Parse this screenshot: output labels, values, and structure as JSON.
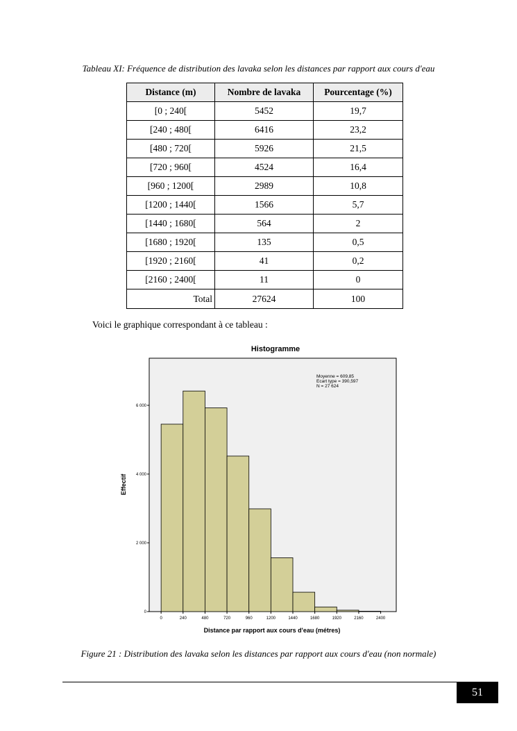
{
  "table_caption": "Tableau XI: Fréquence de distribution des lavaka selon les distances par rapport aux cours d'eau",
  "table": {
    "headers": [
      "Distance (m)",
      "Nombre de lavaka",
      "Pourcentage (%)"
    ],
    "rows": [
      [
        "[0 ; 240[",
        "5452",
        "19,7"
      ],
      [
        "[240 ; 480[",
        "6416",
        "23,2"
      ],
      [
        "[480 ; 720[",
        "5926",
        "21,5"
      ],
      [
        "[720 ; 960[",
        "4524",
        "16,4"
      ],
      [
        "[960 ; 1200[",
        "2989",
        "10,8"
      ],
      [
        "[1200 ; 1440[",
        "1566",
        "5,7"
      ],
      [
        "[1440 ; 1680[",
        "564",
        "2"
      ],
      [
        "[1680 ; 1920[",
        "135",
        "0,5"
      ],
      [
        "[1920 ; 2160[",
        "41",
        "0,2"
      ],
      [
        "[2160 ; 2400[",
        "11",
        "0"
      ]
    ],
    "total": [
      "Total",
      "27624",
      "100"
    ]
  },
  "intro_text": "Voici le graphique correspondant à ce tableau :",
  "chart_data": {
    "type": "bar",
    "title": "Histogramme",
    "xlabel": "Distance par rapport aux cours d'eau (métres)",
    "ylabel": "Effectif",
    "bin_edges": [
      0,
      240,
      480,
      720,
      960,
      1200,
      1440,
      1680,
      1920,
      2160,
      2400
    ],
    "x_tick_labels": [
      "0",
      "240",
      "480",
      "720",
      "960",
      "1200",
      "1440",
      "1680",
      "1920",
      "2160",
      "2400"
    ],
    "values": [
      5452,
      6416,
      5926,
      4524,
      2989,
      1566,
      564,
      135,
      41,
      11
    ],
    "y_ticks": [
      0,
      2000,
      4000,
      6000
    ],
    "y_tick_labels": [
      "0",
      "2 000",
      "4 000",
      "6 000"
    ],
    "ylim": [
      0,
      7370
    ],
    "xlim": [
      -130,
      2570
    ],
    "stats": [
      "Moyenne = 609,85",
      "Ecart type = 390,597",
      "N = 27 624"
    ],
    "bar_color": "#d3cf98",
    "plot_bg": "#f0f0f0",
    "grid": false
  },
  "figure_caption": "Figure 21 : Distribution des lavaka selon les distances par rapport aux cours d'eau (non normale)",
  "page_number": "51"
}
